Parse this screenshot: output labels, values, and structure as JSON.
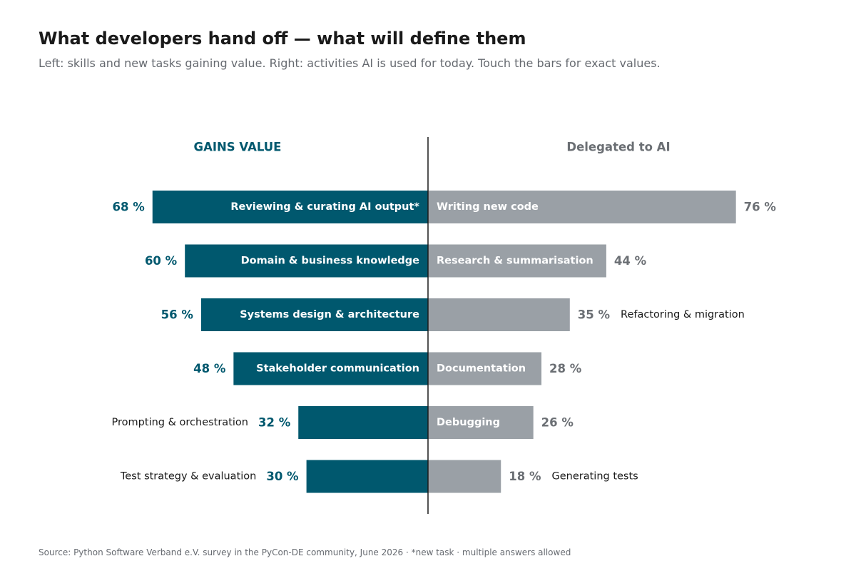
{
  "header": {
    "title": "What developers hand off — what will define them",
    "subtitle": "Left: skills and new tasks gaining value. Right: activities AI is used for today. Touch the bars for exact values."
  },
  "footer": {
    "source": "Source: Python Software Verband e.V. survey in the PyCon-DE community, June 2026 · *new task · multiple answers allowed"
  },
  "colors": {
    "left": "#00586e",
    "right": "#9aa0a6",
    "right_value": "#6b6f74",
    "label_dark": "#1a1a1a",
    "axis": "#1a1a1a"
  },
  "chart_data": {
    "type": "bar",
    "orientation": "diverging-horizontal",
    "value_suffix": " %",
    "left": {
      "heading": "GAINS VALUE",
      "items": [
        {
          "label": "Reviewing & curating AI output*",
          "value": 68
        },
        {
          "label": "Domain & business knowledge",
          "value": 60
        },
        {
          "label": "Systems design & architecture",
          "value": 56
        },
        {
          "label": "Stakeholder communication",
          "value": 48
        },
        {
          "label": "Prompting & orchestration",
          "value": 32
        },
        {
          "label": "Test strategy & evaluation",
          "value": 30
        }
      ]
    },
    "right": {
      "heading": "Delegated to AI",
      "items": [
        {
          "label": "Writing new code",
          "value": 76
        },
        {
          "label": "Research & summarisation",
          "value": 44
        },
        {
          "label": "Refactoring & migration",
          "value": 35
        },
        {
          "label": "Documentation",
          "value": 28
        },
        {
          "label": "Debugging",
          "value": 26
        },
        {
          "label": "Generating tests",
          "value": 18
        }
      ]
    }
  }
}
